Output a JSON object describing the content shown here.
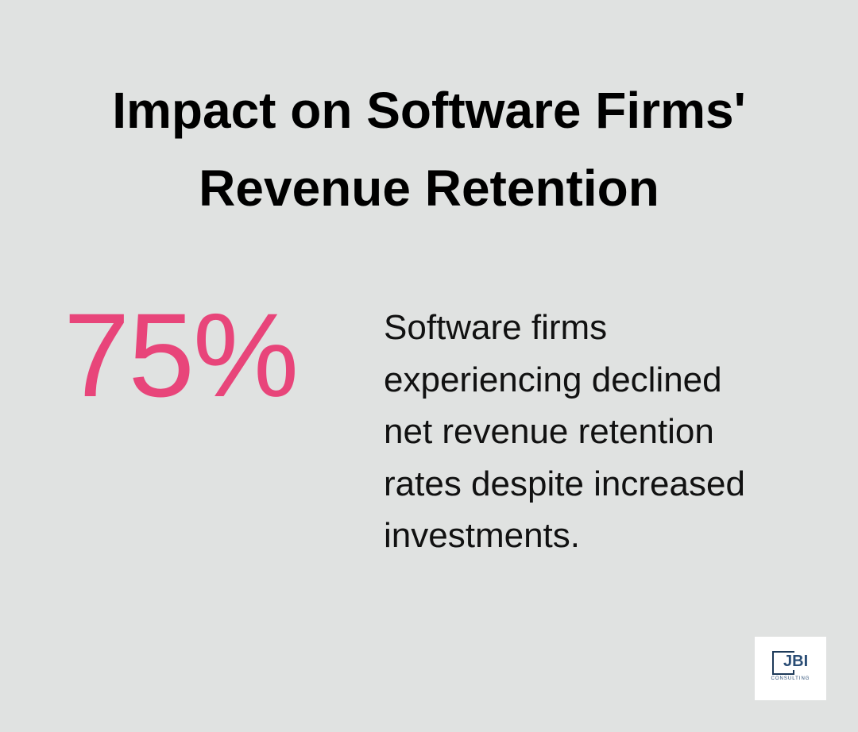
{
  "header": {
    "title_lines": [
      "Impact on Software Firms'",
      "Revenue Retention"
    ]
  },
  "stat": {
    "value": "75%",
    "description_lines": [
      "Software firms",
      "experiencing declined",
      "net revenue retention",
      "rates despite increased",
      "investments."
    ]
  },
  "logo": {
    "mark": "JBI",
    "subtitle": "CONSULTING"
  }
}
